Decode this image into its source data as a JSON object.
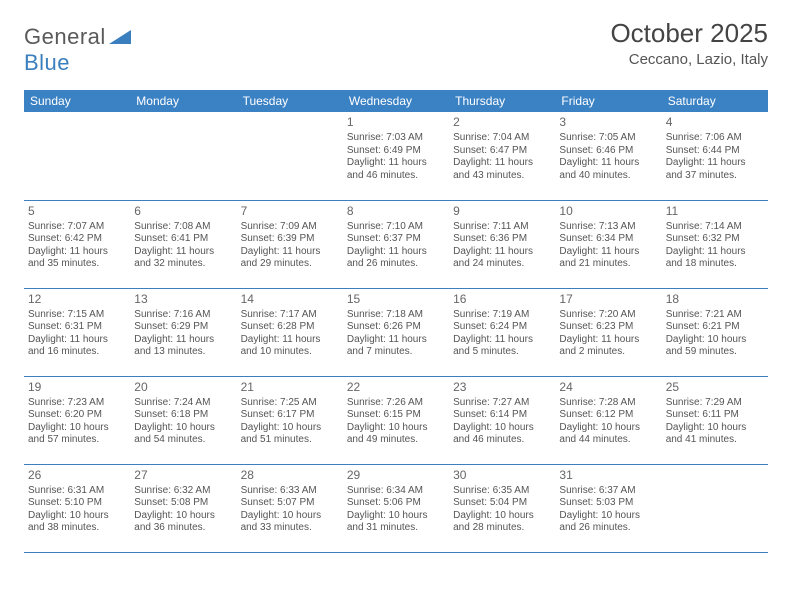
{
  "brand": {
    "name_part1": "General",
    "name_part2": "Blue"
  },
  "title": "October 2025",
  "location": "Ceccano, Lazio, Italy",
  "colors": {
    "header_bg": "#3b82c4",
    "header_text": "#ffffff",
    "rule": "#3b7fbf",
    "body_text": "#555555",
    "logo_gray": "#5a5a5a",
    "logo_blue": "#3b7fbf",
    "page_bg": "#ffffff"
  },
  "typography": {
    "title_fontsize": 26,
    "location_fontsize": 15,
    "weekday_fontsize": 12,
    "daynum_fontsize": 12,
    "cell_fontsize": 10
  },
  "weekdays": [
    "Sunday",
    "Monday",
    "Tuesday",
    "Wednesday",
    "Thursday",
    "Friday",
    "Saturday"
  ],
  "weeks": [
    [
      null,
      null,
      null,
      {
        "n": "1",
        "sr": "7:03 AM",
        "ss": "6:49 PM",
        "dl": "11 hours and 46 minutes."
      },
      {
        "n": "2",
        "sr": "7:04 AM",
        "ss": "6:47 PM",
        "dl": "11 hours and 43 minutes."
      },
      {
        "n": "3",
        "sr": "7:05 AM",
        "ss": "6:46 PM",
        "dl": "11 hours and 40 minutes."
      },
      {
        "n": "4",
        "sr": "7:06 AM",
        "ss": "6:44 PM",
        "dl": "11 hours and 37 minutes."
      }
    ],
    [
      {
        "n": "5",
        "sr": "7:07 AM",
        "ss": "6:42 PM",
        "dl": "11 hours and 35 minutes."
      },
      {
        "n": "6",
        "sr": "7:08 AM",
        "ss": "6:41 PM",
        "dl": "11 hours and 32 minutes."
      },
      {
        "n": "7",
        "sr": "7:09 AM",
        "ss": "6:39 PM",
        "dl": "11 hours and 29 minutes."
      },
      {
        "n": "8",
        "sr": "7:10 AM",
        "ss": "6:37 PM",
        "dl": "11 hours and 26 minutes."
      },
      {
        "n": "9",
        "sr": "7:11 AM",
        "ss": "6:36 PM",
        "dl": "11 hours and 24 minutes."
      },
      {
        "n": "10",
        "sr": "7:13 AM",
        "ss": "6:34 PM",
        "dl": "11 hours and 21 minutes."
      },
      {
        "n": "11",
        "sr": "7:14 AM",
        "ss": "6:32 PM",
        "dl": "11 hours and 18 minutes."
      }
    ],
    [
      {
        "n": "12",
        "sr": "7:15 AM",
        "ss": "6:31 PM",
        "dl": "11 hours and 16 minutes."
      },
      {
        "n": "13",
        "sr": "7:16 AM",
        "ss": "6:29 PM",
        "dl": "11 hours and 13 minutes."
      },
      {
        "n": "14",
        "sr": "7:17 AM",
        "ss": "6:28 PM",
        "dl": "11 hours and 10 minutes."
      },
      {
        "n": "15",
        "sr": "7:18 AM",
        "ss": "6:26 PM",
        "dl": "11 hours and 7 minutes."
      },
      {
        "n": "16",
        "sr": "7:19 AM",
        "ss": "6:24 PM",
        "dl": "11 hours and 5 minutes."
      },
      {
        "n": "17",
        "sr": "7:20 AM",
        "ss": "6:23 PM",
        "dl": "11 hours and 2 minutes."
      },
      {
        "n": "18",
        "sr": "7:21 AM",
        "ss": "6:21 PM",
        "dl": "10 hours and 59 minutes."
      }
    ],
    [
      {
        "n": "19",
        "sr": "7:23 AM",
        "ss": "6:20 PM",
        "dl": "10 hours and 57 minutes."
      },
      {
        "n": "20",
        "sr": "7:24 AM",
        "ss": "6:18 PM",
        "dl": "10 hours and 54 minutes."
      },
      {
        "n": "21",
        "sr": "7:25 AM",
        "ss": "6:17 PM",
        "dl": "10 hours and 51 minutes."
      },
      {
        "n": "22",
        "sr": "7:26 AM",
        "ss": "6:15 PM",
        "dl": "10 hours and 49 minutes."
      },
      {
        "n": "23",
        "sr": "7:27 AM",
        "ss": "6:14 PM",
        "dl": "10 hours and 46 minutes."
      },
      {
        "n": "24",
        "sr": "7:28 AM",
        "ss": "6:12 PM",
        "dl": "10 hours and 44 minutes."
      },
      {
        "n": "25",
        "sr": "7:29 AM",
        "ss": "6:11 PM",
        "dl": "10 hours and 41 minutes."
      }
    ],
    [
      {
        "n": "26",
        "sr": "6:31 AM",
        "ss": "5:10 PM",
        "dl": "10 hours and 38 minutes."
      },
      {
        "n": "27",
        "sr": "6:32 AM",
        "ss": "5:08 PM",
        "dl": "10 hours and 36 minutes."
      },
      {
        "n": "28",
        "sr": "6:33 AM",
        "ss": "5:07 PM",
        "dl": "10 hours and 33 minutes."
      },
      {
        "n": "29",
        "sr": "6:34 AM",
        "ss": "5:06 PM",
        "dl": "10 hours and 31 minutes."
      },
      {
        "n": "30",
        "sr": "6:35 AM",
        "ss": "5:04 PM",
        "dl": "10 hours and 28 minutes."
      },
      {
        "n": "31",
        "sr": "6:37 AM",
        "ss": "5:03 PM",
        "dl": "10 hours and 26 minutes."
      },
      null
    ]
  ],
  "labels": {
    "sunrise": "Sunrise:",
    "sunset": "Sunset:",
    "daylight": "Daylight:"
  }
}
